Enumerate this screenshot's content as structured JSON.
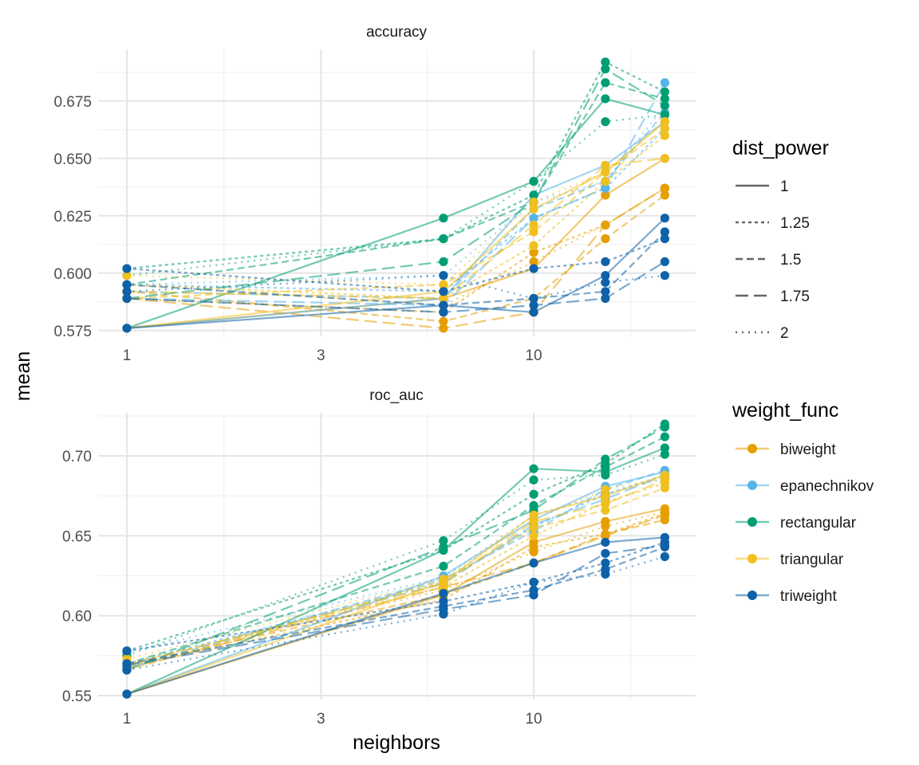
{
  "chart_data": {
    "type": "line",
    "xlabel": "neighbors",
    "ylabel": "mean",
    "x_scale": "log10",
    "x": [
      1,
      6,
      10,
      15,
      21
    ],
    "x_ticks": [
      1,
      3,
      10
    ],
    "x_tick_labels": [
      "1",
      "3",
      "10"
    ],
    "xlim": [
      0.85,
      25
    ],
    "grid": true,
    "legend_position": "right",
    "legends": {
      "dist_power": {
        "title": "dist_power",
        "entries": [
          "1",
          "1.25",
          "1.5",
          "1.75",
          "2"
        ],
        "dashes": [
          "",
          "4 4",
          "9 5",
          "16 7",
          "2 6"
        ]
      },
      "weight_func": {
        "title": "weight_func",
        "entries": [
          "biweight",
          "epanechnikov",
          "rectangular",
          "triangular",
          "triweight"
        ]
      }
    },
    "colors": {
      "biweight": "#E69F00",
      "epanechnikov": "#56B4E9",
      "rectangular": "#009E73",
      "triangular": "#F0C020",
      "triweight": "#0F62A8"
    },
    "panels": [
      {
        "metric": "accuracy",
        "ylim": [
          0.5725,
          0.6975
        ],
        "y_ticks": [
          0.575,
          0.6,
          0.625,
          0.65,
          0.675
        ],
        "y_tick_labels": [
          "0.575",
          "0.600",
          "0.625",
          "0.650",
          "0.675"
        ],
        "series": [
          {
            "weight_func": "biweight",
            "dist_power": "1",
            "values": [
              0.576,
              0.589,
              0.602,
              0.634,
              0.65
            ]
          },
          {
            "weight_func": "biweight",
            "dist_power": "1.25",
            "values": [
              0.589,
              0.583,
              0.609,
              0.621,
              0.637
            ]
          },
          {
            "weight_func": "biweight",
            "dist_power": "1.5",
            "values": [
              0.592,
              0.579,
              0.589,
              0.615,
              0.634
            ]
          },
          {
            "weight_func": "biweight",
            "dist_power": "1.75",
            "values": [
              0.589,
              0.576,
              0.583,
              0.621,
              0.637
            ]
          },
          {
            "weight_func": "biweight",
            "dist_power": "2",
            "values": [
              0.595,
              0.586,
              0.605,
              0.621,
              0.637
            ]
          },
          {
            "weight_func": "epanechnikov",
            "dist_power": "1",
            "values": [
              0.576,
              0.589,
              0.634,
              0.647,
              0.666
            ]
          },
          {
            "weight_func": "epanechnikov",
            "dist_power": "1.25",
            "values": [
              0.595,
              0.592,
              0.624,
              0.637,
              0.663
            ]
          },
          {
            "weight_func": "epanechnikov",
            "dist_power": "1.5",
            "values": [
              0.592,
              0.589,
              0.628,
              0.64,
              0.67
            ]
          },
          {
            "weight_func": "epanechnikov",
            "dist_power": "1.75",
            "values": [
              0.589,
              0.586,
              0.624,
              0.637,
              0.683
            ]
          },
          {
            "weight_func": "epanechnikov",
            "dist_power": "2",
            "values": [
              0.595,
              0.599,
              0.631,
              0.64,
              0.673
            ]
          },
          {
            "weight_func": "rectangular",
            "dist_power": "1",
            "values": [
              0.576,
              0.624,
              0.64,
              0.676,
              0.669
            ]
          },
          {
            "weight_func": "rectangular",
            "dist_power": "1.25",
            "values": [
              0.602,
              0.615,
              0.634,
              0.692,
              0.679
            ]
          },
          {
            "weight_func": "rectangular",
            "dist_power": "1.5",
            "values": [
              0.595,
              0.615,
              0.631,
              0.683,
              0.676
            ]
          },
          {
            "weight_func": "rectangular",
            "dist_power": "1.75",
            "values": [
              0.589,
              0.605,
              0.631,
              0.689,
              0.673
            ]
          },
          {
            "weight_func": "rectangular",
            "dist_power": "2",
            "values": [
              0.599,
              0.615,
              0.64,
              0.666,
              0.669
            ]
          },
          {
            "weight_func": "triangular",
            "dist_power": "1",
            "values": [
              0.576,
              0.592,
              0.628,
              0.644,
              0.666
            ]
          },
          {
            "weight_func": "triangular",
            "dist_power": "1.25",
            "values": [
              0.595,
              0.589,
              0.612,
              0.64,
              0.66
            ]
          },
          {
            "weight_func": "triangular",
            "dist_power": "1.5",
            "values": [
              0.589,
              0.595,
              0.618,
              0.644,
              0.663
            ]
          },
          {
            "weight_func": "triangular",
            "dist_power": "1.75",
            "values": [
              0.592,
              0.589,
              0.621,
              0.647,
              0.65
            ]
          },
          {
            "weight_func": "triangular",
            "dist_power": "2",
            "values": [
              0.599,
              0.595,
              0.631,
              0.644,
              0.666
            ]
          },
          {
            "weight_func": "triweight",
            "dist_power": "1",
            "values": [
              0.576,
              0.586,
              0.583,
              0.599,
              0.624
            ]
          },
          {
            "weight_func": "triweight",
            "dist_power": "1.25",
            "values": [
              0.602,
              0.592,
              0.602,
              0.605,
              0.615
            ]
          },
          {
            "weight_func": "triweight",
            "dist_power": "1.5",
            "values": [
              0.595,
              0.586,
              0.589,
              0.592,
              0.618
            ]
          },
          {
            "weight_func": "triweight",
            "dist_power": "1.75",
            "values": [
              0.589,
              0.583,
              0.586,
              0.589,
              0.605
            ]
          },
          {
            "weight_func": "triweight",
            "dist_power": "2",
            "values": [
              0.592,
              0.599,
              0.589,
              0.596,
              0.599
            ]
          }
        ]
      },
      {
        "metric": "roc_auc",
        "ylim": [
          0.5475,
          0.727
        ],
        "y_ticks": [
          0.55,
          0.6,
          0.65,
          0.7
        ],
        "y_tick_labels": [
          "0.55",
          "0.60",
          "0.65",
          "0.70"
        ],
        "series": [
          {
            "weight_func": "biweight",
            "dist_power": "1",
            "values": [
              0.551,
              0.613,
              0.646,
              0.659,
              0.667
            ]
          },
          {
            "weight_func": "biweight",
            "dist_power": "1.25",
            "values": [
              0.568,
              0.61,
              0.643,
              0.651,
              0.664
            ]
          },
          {
            "weight_func": "biweight",
            "dist_power": "1.5",
            "values": [
              0.569,
              0.613,
              0.633,
              0.651,
              0.66
            ]
          },
          {
            "weight_func": "biweight",
            "dist_power": "1.75",
            "values": [
              0.567,
              0.618,
              0.633,
              0.65,
              0.663
            ]
          },
          {
            "weight_func": "biweight",
            "dist_power": "2",
            "values": [
              0.57,
              0.616,
              0.64,
              0.656,
              0.665
            ]
          },
          {
            "weight_func": "epanechnikov",
            "dist_power": "1",
            "values": [
              0.551,
              0.625,
              0.66,
              0.681,
              0.69
            ]
          },
          {
            "weight_func": "epanechnikov",
            "dist_power": "1.25",
            "values": [
              0.57,
              0.621,
              0.656,
              0.676,
              0.688
            ]
          },
          {
            "weight_func": "epanechnikov",
            "dist_power": "1.5",
            "values": [
              0.567,
              0.623,
              0.653,
              0.679,
              0.691
            ]
          },
          {
            "weight_func": "epanechnikov",
            "dist_power": "1.75",
            "values": [
              0.569,
              0.62,
              0.657,
              0.673,
              0.688
            ]
          },
          {
            "weight_func": "epanechnikov",
            "dist_power": "2",
            "values": [
              0.577,
              0.624,
              0.663,
              0.676,
              0.686
            ]
          },
          {
            "weight_func": "rectangular",
            "dist_power": "1",
            "values": [
              0.551,
              0.641,
              0.692,
              0.69,
              0.705
            ]
          },
          {
            "weight_func": "rectangular",
            "dist_power": "1.25",
            "values": [
              0.578,
              0.641,
              0.676,
              0.695,
              0.72
            ]
          },
          {
            "weight_func": "rectangular",
            "dist_power": "1.5",
            "values": [
              0.57,
              0.631,
              0.669,
              0.693,
              0.712
            ]
          },
          {
            "weight_func": "rectangular",
            "dist_power": "1.75",
            "values": [
              0.566,
              0.643,
              0.666,
              0.698,
              0.718
            ]
          },
          {
            "weight_func": "rectangular",
            "dist_power": "2",
            "values": [
              0.575,
              0.647,
              0.685,
              0.688,
              0.701
            ]
          },
          {
            "weight_func": "triangular",
            "dist_power": "1",
            "values": [
              0.551,
              0.621,
              0.663,
              0.675,
              0.688
            ]
          },
          {
            "weight_func": "triangular",
            "dist_power": "1.25",
            "values": [
              0.57,
              0.618,
              0.65,
              0.671,
              0.683
            ]
          },
          {
            "weight_func": "triangular",
            "dist_power": "1.5",
            "values": [
              0.566,
              0.622,
              0.655,
              0.666,
              0.68
            ]
          },
          {
            "weight_func": "triangular",
            "dist_power": "1.75",
            "values": [
              0.569,
              0.62,
              0.659,
              0.67,
              0.685
            ]
          },
          {
            "weight_func": "triangular",
            "dist_power": "2",
            "values": [
              0.573,
              0.623,
              0.66,
              0.679,
              0.686
            ]
          },
          {
            "weight_func": "triweight",
            "dist_power": "1",
            "values": [
              0.551,
              0.614,
              0.633,
              0.646,
              0.649
            ]
          },
          {
            "weight_func": "triweight",
            "dist_power": "1.25",
            "values": [
              0.578,
              0.609,
              0.621,
              0.633,
              0.646
            ]
          },
          {
            "weight_func": "triweight",
            "dist_power": "1.5",
            "values": [
              0.57,
              0.606,
              0.616,
              0.629,
              0.643
            ]
          },
          {
            "weight_func": "triweight",
            "dist_power": "1.75",
            "values": [
              0.569,
              0.604,
              0.613,
              0.639,
              0.644
            ]
          },
          {
            "weight_func": "triweight",
            "dist_power": "2",
            "values": [
              0.566,
              0.601,
              0.621,
              0.626,
              0.637
            ]
          }
        ]
      }
    ]
  }
}
